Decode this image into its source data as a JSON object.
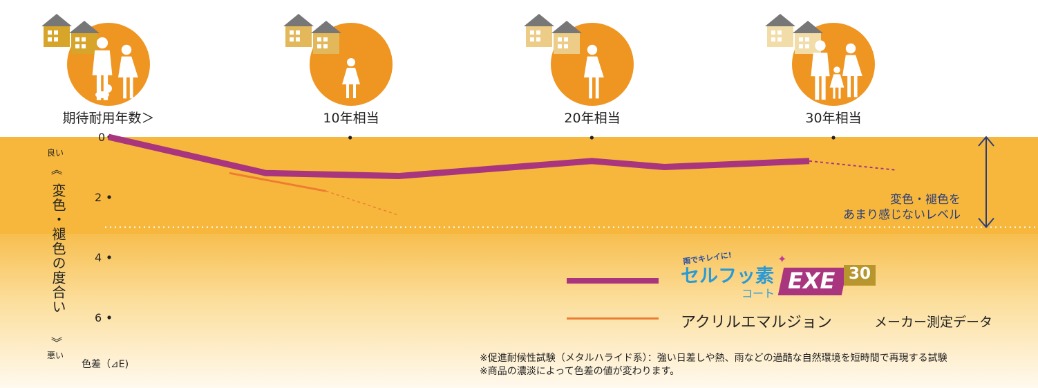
{
  "colors": {
    "band": "#f6b73c",
    "circle": "#ef9522",
    "selfu": "#a8357e",
    "acrylic": "#ed7d31",
    "arrow": "#2c3e7a"
  },
  "header": {
    "eras": [
      {
        "label": "期待耐用年数＞"
      },
      {
        "label": "10年相当"
      },
      {
        "label": "20年相当"
      },
      {
        "label": "30年相当"
      }
    ]
  },
  "yaxis": {
    "title_top": "良い",
    "title": "変色・褪色の度合い",
    "title_bottom": "悪い",
    "unit": "色差（⊿E)",
    "ticks": [
      "0",
      "2",
      "4",
      "6"
    ]
  },
  "annotation": {
    "line1": "変色・褪色を",
    "line2": "あまり感じないレベル"
  },
  "legend": {
    "product_tagline": "雨でキレイに!",
    "product_name": "セルフッ素",
    "product_sub": "コート",
    "product_badge": "EXE",
    "product_badge_num": "30",
    "acrylic": "アクリルエマルジョン",
    "source": "メーカー測定データ"
  },
  "notes": {
    "n1": "※促進耐候性試験（メタルハライド系）：強い日差しや熱、雨などの過酷な自然環境を短時間で再現する試験",
    "n2": "※商品の濃淡によって色差の値が変わります。"
  },
  "chart_data": {
    "type": "line",
    "y_reversed": true,
    "ylim": [
      0,
      6.7
    ],
    "yticks": [
      0,
      2,
      4,
      6
    ],
    "x_categories": [
      "0",
      "10年相当",
      "20年相当",
      "30年相当"
    ],
    "xlim": [
      0,
      30
    ],
    "threshold": 3.0,
    "series": [
      {
        "name": "セルフッ素 コート EXE 30",
        "color": "#a8357e",
        "x": [
          0,
          6.5,
          12,
          20,
          23,
          29,
          32.6
        ],
        "y": [
          0.0,
          1.2,
          1.3,
          0.8,
          1.0,
          0.8,
          1.1
        ],
        "dashed_from_index": 5
      },
      {
        "name": "アクリルエマルジョン",
        "color": "#ed7d31",
        "x": [
          5.0,
          9.0,
          12.0
        ],
        "y": [
          1.2,
          1.8,
          2.6
        ],
        "dashed_from_index": 1
      }
    ]
  }
}
